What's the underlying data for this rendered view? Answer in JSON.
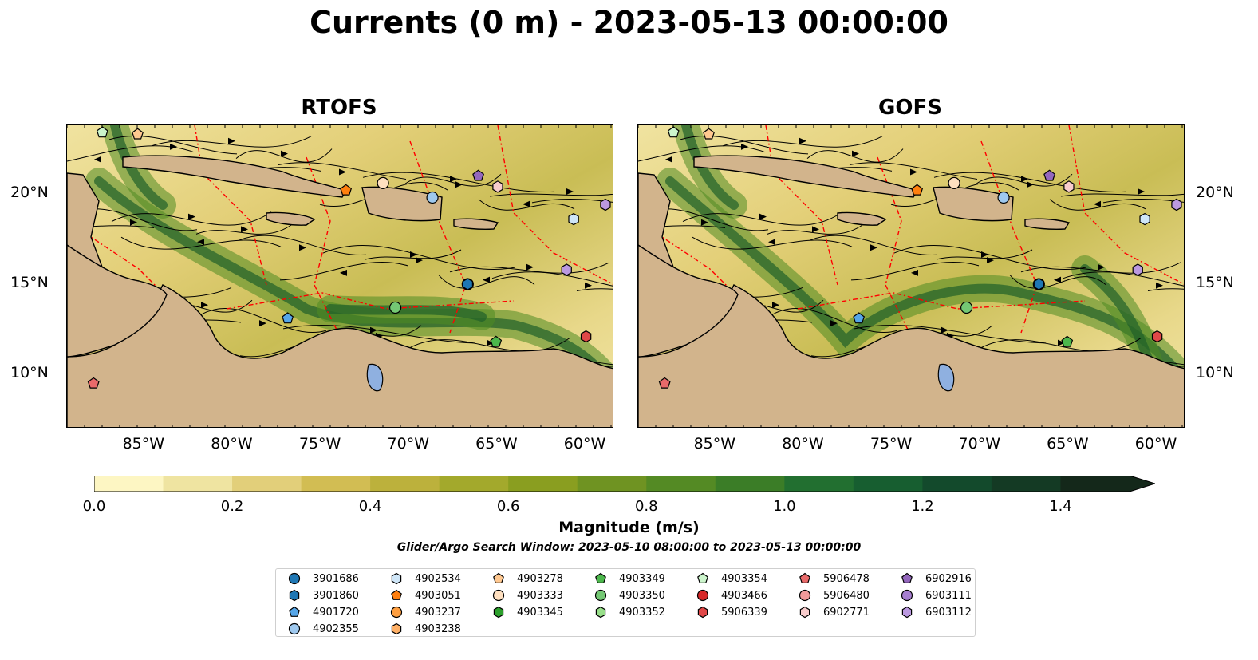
{
  "title": "Currents (0 m) - 2023-05-13 00:00:00",
  "panels": [
    {
      "name": "RTOFS"
    },
    {
      "name": "GOFS"
    }
  ],
  "lon_ticks": [
    "85°W",
    "80°W",
    "75°W",
    "70°W",
    "65°W",
    "60°W"
  ],
  "lat_ticks": [
    "20°N",
    "15°N",
    "10°N"
  ],
  "map_extent": {
    "lon": [
      -89.5,
      -58.5
    ],
    "lat": [
      7.0,
      23.8
    ]
  },
  "colorbar": {
    "label": "Magnitude (m/s)",
    "ticks": [
      "0.0",
      "0.2",
      "0.4",
      "0.6",
      "0.8",
      "1.0",
      "1.2",
      "1.4"
    ],
    "range": [
      0.0,
      1.5
    ],
    "extend": "max",
    "colors": [
      "#fdf6c3",
      "#efe4a1",
      "#e2cf7a",
      "#d2bd53",
      "#bcb13c",
      "#a3a92c",
      "#8a9e20",
      "#6f9322",
      "#548a24",
      "#3b7d27",
      "#226f30",
      "#175e30",
      "#134a2c",
      "#143a24",
      "#14281a"
    ]
  },
  "colors": {
    "land": "#d2b48c",
    "lake": "#8fb0e0",
    "eez": "#ff0000"
  },
  "search_window": "Glider/Argo Search Window: 2023-05-10 08:00:00 to 2023-05-13 00:00:00",
  "legend": [
    {
      "id": "3901686",
      "marker": "circle",
      "color": "#1f77b4"
    },
    {
      "id": "3901860",
      "marker": "hexagon",
      "color": "#1f77b4"
    },
    {
      "id": "4901720",
      "marker": "pentagon",
      "color": "#56a6e8"
    },
    {
      "id": "4902355",
      "marker": "circle",
      "color": "#9fc9ef"
    },
    {
      "id": "4902534",
      "marker": "hexagon",
      "color": "#cfe6f8"
    },
    {
      "id": "4903051",
      "marker": "pentagon",
      "color": "#ff7f0e"
    },
    {
      "id": "4903237",
      "marker": "circle",
      "color": "#ff9f40"
    },
    {
      "id": "4903238",
      "marker": "hexagon",
      "color": "#ffb066"
    },
    {
      "id": "4903278",
      "marker": "pentagon",
      "color": "#ffc890"
    },
    {
      "id": "4903333",
      "marker": "circle",
      "color": "#ffe0c0"
    },
    {
      "id": "4903345",
      "marker": "hexagon",
      "color": "#2ca02c"
    },
    {
      "id": "4903349",
      "marker": "pentagon",
      "color": "#4cb74c"
    },
    {
      "id": "4903350",
      "marker": "circle",
      "color": "#74c874"
    },
    {
      "id": "4903352",
      "marker": "hexagon",
      "color": "#98df8a"
    },
    {
      "id": "4903354",
      "marker": "pentagon",
      "color": "#ccf5cc"
    },
    {
      "id": "4903466",
      "marker": "circle",
      "color": "#d62728"
    },
    {
      "id": "5906339",
      "marker": "hexagon",
      "color": "#e04848"
    },
    {
      "id": "5906478",
      "marker": "pentagon",
      "color": "#e86a6a"
    },
    {
      "id": "5906480",
      "marker": "circle",
      "color": "#f09a9a"
    },
    {
      "id": "6902771",
      "marker": "hexagon",
      "color": "#f8cccc"
    },
    {
      "id": "6902916",
      "marker": "pentagon",
      "color": "#9467bd"
    },
    {
      "id": "6903111",
      "marker": "circle",
      "color": "#a77fd0"
    },
    {
      "id": "6903112",
      "marker": "hexagon",
      "color": "#bb99e0"
    }
  ],
  "floats": [
    {
      "id": "3901686",
      "lon": -66.8,
      "lat": 15.0
    },
    {
      "id": "3901860",
      "lon": -66.8,
      "lat": 15.0
    },
    {
      "id": "4901720",
      "lon": -77.0,
      "lat": 13.1
    },
    {
      "id": "4902355",
      "lon": -68.8,
      "lat": 19.8
    },
    {
      "id": "4902534",
      "lon": -60.8,
      "lat": 18.6
    },
    {
      "id": "4903051",
      "lon": -73.7,
      "lat": 20.2
    },
    {
      "id": "4903278",
      "lon": -85.5,
      "lat": 23.3
    },
    {
      "id": "4903333",
      "lon": -71.6,
      "lat": 20.6
    },
    {
      "id": "4903349",
      "lon": -65.2,
      "lat": 11.8
    },
    {
      "id": "4903350",
      "lon": -70.9,
      "lat": 13.7
    },
    {
      "id": "4903354",
      "lon": -87.5,
      "lat": 23.4
    },
    {
      "id": "5906339",
      "lon": -60.1,
      "lat": 12.1
    },
    {
      "id": "5906478",
      "lon": -88.0,
      "lat": 9.5
    },
    {
      "id": "6902771",
      "lon": -65.1,
      "lat": 20.4
    },
    {
      "id": "6902916",
      "lon": -66.2,
      "lat": 21.0
    },
    {
      "id": "6903112",
      "lon": -61.2,
      "lat": 15.8
    },
    {
      "id": "6903112",
      "lon": -59.0,
      "lat": 19.4
    }
  ]
}
